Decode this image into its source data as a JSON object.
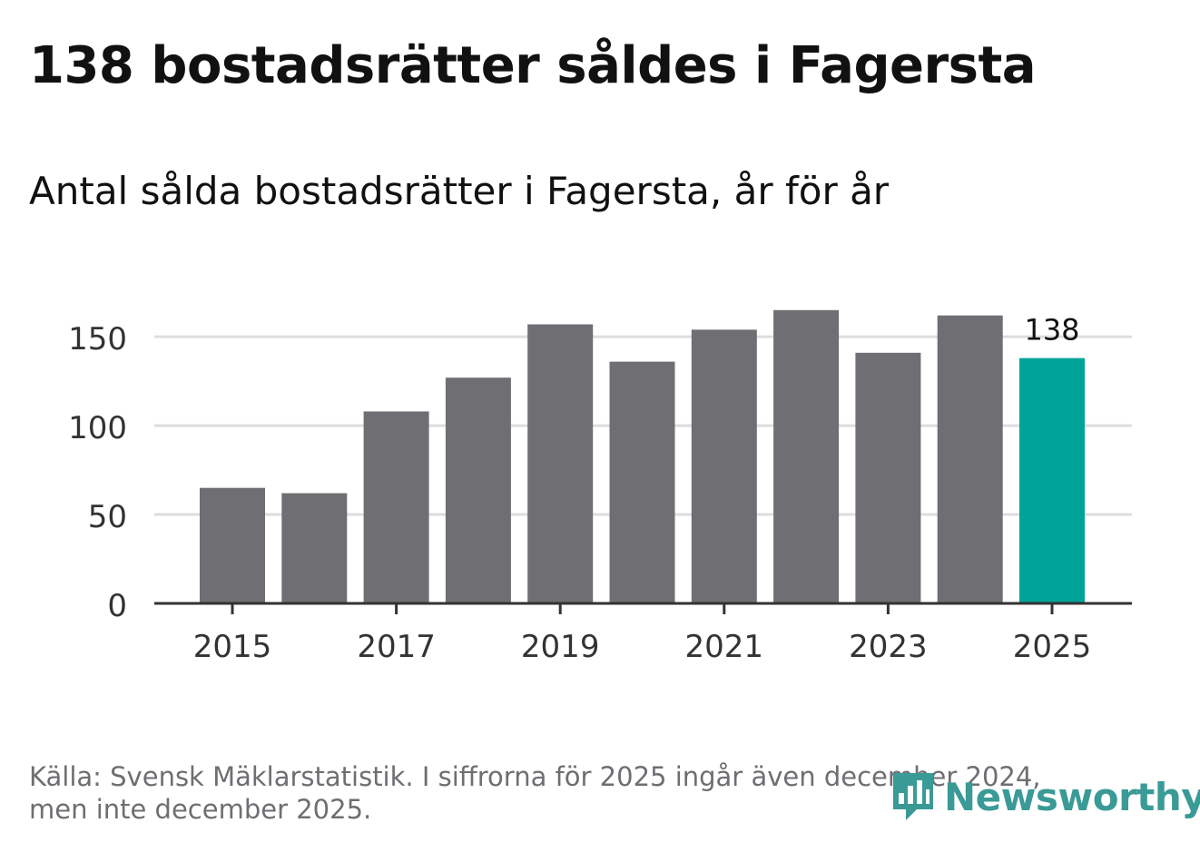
{
  "header": {
    "title": "138 bostadsrätter såldes i Fagersta",
    "subtitle": "Antal sålda bostadsrätter i Fagersta, år för år"
  },
  "footer": {
    "source_line1": "Källa: Svensk Mäklarstatistik. I siffrorna för 2025 ingår även december 2024,",
    "source_line2": "men inte december 2025.",
    "logo_text": "Newsworthy"
  },
  "colors": {
    "bar": "#6e6e73",
    "highlight": "#00a398",
    "grid": "#dddddd",
    "axis": "#333333",
    "logo": "#3a9a96"
  },
  "chart_data": {
    "type": "bar",
    "title": "Antal sålda bostadsrätter i Fagersta, år för år",
    "xlabel": "",
    "ylabel": "",
    "categories": [
      "2015",
      "2016",
      "2017",
      "2018",
      "2019",
      "2020",
      "2021",
      "2022",
      "2023",
      "2024",
      "2025"
    ],
    "values": [
      65,
      62,
      108,
      127,
      157,
      136,
      154,
      165,
      141,
      162,
      138
    ],
    "highlight_index": 10,
    "value_label": "138",
    "ylim": [
      0,
      170
    ],
    "yticks": [
      0,
      50,
      100,
      150
    ],
    "xtick_labels": [
      "2015",
      "2017",
      "2019",
      "2021",
      "2023",
      "2025"
    ],
    "grid": true,
    "legend": "none"
  }
}
